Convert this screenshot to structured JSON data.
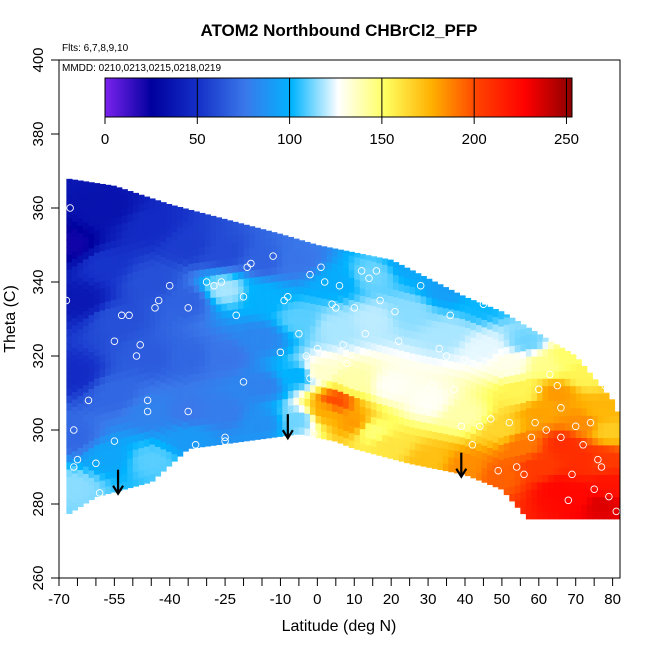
{
  "chart_data": {
    "type": "heatmap",
    "title": "ATOM2 Northbound CHBrCl2_PFP",
    "xlabel": "Latitude (deg N)",
    "ylabel": "Theta (C)",
    "xlim": [
      -70,
      82
    ],
    "ylim": [
      260,
      400
    ],
    "xticks_labeled": [
      -70,
      -55,
      -40,
      -25,
      -10,
      0,
      10,
      20,
      30,
      40,
      50,
      60,
      70,
      80
    ],
    "xticks_minor_step": 5,
    "yticks": [
      260,
      280,
      300,
      320,
      340,
      360,
      380,
      400
    ],
    "notes": {
      "flights": "Flts: 6,7,8,9,10",
      "dates": "MMDD: 0210,0213,0215,0218,0219"
    },
    "colorbar": {
      "min": 0,
      "max": 253,
      "ticks": [
        0,
        50,
        100,
        150,
        200,
        250
      ],
      "colors": [
        "#7b22ee",
        "#00009e",
        "#1530c8",
        "#3a78ea",
        "#00b4ff",
        "#ffffff",
        "#ffff60",
        "#ffb000",
        "#ff4000",
        "#ff0000",
        "#8b0000"
      ]
    },
    "grid": false,
    "profile_markers_lat": [
      -54,
      -8,
      39
    ],
    "domain_top": [
      [
        -68,
        368
      ],
      [
        -55,
        366
      ],
      [
        -40,
        361
      ],
      [
        -25,
        357
      ],
      [
        -10,
        353
      ],
      [
        0,
        350
      ],
      [
        10,
        348
      ],
      [
        20,
        346
      ],
      [
        30,
        341
      ],
      [
        40,
        336
      ],
      [
        50,
        332
      ],
      [
        60,
        326
      ],
      [
        70,
        320
      ],
      [
        75,
        314
      ],
      [
        80,
        308
      ],
      [
        81,
        305
      ]
    ],
    "domain_bottom": [
      [
        -68,
        277
      ],
      [
        -60,
        282
      ],
      [
        -45,
        286
      ],
      [
        -35,
        295
      ],
      [
        -20,
        297
      ],
      [
        -5,
        299
      ],
      [
        5,
        297
      ],
      [
        10,
        295
      ],
      [
        25,
        291
      ],
      [
        40,
        288
      ],
      [
        50,
        284
      ],
      [
        57,
        276
      ],
      [
        81,
        276
      ]
    ],
    "anchors": [
      [
        -66,
        350,
        22
      ],
      [
        -64,
        335,
        38
      ],
      [
        -66,
        315,
        48
      ],
      [
        -66,
        298,
        70
      ],
      [
        -66,
        285,
        115
      ],
      [
        -57,
        360,
        35
      ],
      [
        -58,
        345,
        52
      ],
      [
        -55,
        330,
        62
      ],
      [
        -55,
        310,
        70
      ],
      [
        -57,
        293,
        95
      ],
      [
        -45,
        355,
        48
      ],
      [
        -45,
        340,
        62
      ],
      [
        -45,
        320,
        66
      ],
      [
        -45,
        305,
        80
      ],
      [
        -45,
        292,
        110
      ],
      [
        -35,
        350,
        55
      ],
      [
        -35,
        335,
        68
      ],
      [
        -35,
        320,
        70
      ],
      [
        -35,
        305,
        76
      ],
      [
        -35,
        298,
        90
      ],
      [
        -25,
        348,
        60
      ],
      [
        -25,
        338,
        118
      ],
      [
        -25,
        320,
        75
      ],
      [
        -25,
        305,
        78
      ],
      [
        -15,
        346,
        68
      ],
      [
        -15,
        336,
        100
      ],
      [
        -15,
        325,
        82
      ],
      [
        -15,
        312,
        80
      ],
      [
        -15,
        302,
        86
      ],
      [
        -5,
        346,
        75
      ],
      [
        -5,
        330,
        110
      ],
      [
        -5,
        315,
        100
      ],
      [
        -5,
        303,
        112
      ],
      [
        2,
        305,
        178
      ],
      [
        5,
        308,
        200
      ],
      [
        0,
        316,
        135
      ],
      [
        5,
        328,
        118
      ],
      [
        5,
        340,
        98
      ],
      [
        10,
        302,
        182
      ],
      [
        10,
        313,
        140
      ],
      [
        15,
        330,
        120
      ],
      [
        15,
        342,
        112
      ],
      [
        15,
        300,
        148
      ],
      [
        20,
        296,
        160
      ],
      [
        20,
        312,
        128
      ],
      [
        25,
        332,
        115
      ],
      [
        25,
        345,
        95
      ],
      [
        30,
        292,
        172
      ],
      [
        30,
        308,
        128
      ],
      [
        35,
        326,
        118
      ],
      [
        35,
        338,
        92
      ],
      [
        40,
        290,
        185
      ],
      [
        40,
        304,
        140
      ],
      [
        45,
        322,
        124
      ],
      [
        45,
        334,
        102
      ],
      [
        50,
        288,
        195
      ],
      [
        50,
        300,
        165
      ],
      [
        52,
        318,
        130
      ],
      [
        55,
        296,
        190
      ],
      [
        55,
        310,
        155
      ],
      [
        57,
        324,
        112
      ],
      [
        60,
        290,
        205
      ],
      [
        60,
        305,
        180
      ],
      [
        62,
        318,
        145
      ],
      [
        65,
        284,
        225
      ],
      [
        67,
        296,
        210
      ],
      [
        65,
        310,
        182
      ],
      [
        67,
        320,
        150
      ],
      [
        70,
        282,
        225
      ],
      [
        72,
        292,
        210
      ],
      [
        72,
        302,
        185
      ],
      [
        72,
        315,
        155
      ],
      [
        77,
        280,
        235
      ],
      [
        77,
        292,
        205
      ],
      [
        77,
        305,
        175
      ],
      [
        79,
        300,
        168
      ],
      [
        79,
        285,
        220
      ]
    ],
    "points": [
      [
        -68,
        335
      ],
      [
        -67,
        360
      ],
      [
        -66,
        300
      ],
      [
        -66,
        290
      ],
      [
        -65,
        292
      ],
      [
        -62,
        308
      ],
      [
        -60,
        291
      ],
      [
        -59,
        283
      ],
      [
        -55,
        324
      ],
      [
        -53,
        331
      ],
      [
        -51,
        331
      ],
      [
        -49,
        320
      ],
      [
        -48,
        323
      ],
      [
        -44,
        333
      ],
      [
        -43,
        335
      ],
      [
        -46,
        308
      ],
      [
        -46,
        305
      ],
      [
        -55,
        297
      ],
      [
        -40,
        339
      ],
      [
        -35,
        333
      ],
      [
        -35,
        305
      ],
      [
        -33,
        296
      ],
      [
        -30,
        340
      ],
      [
        -28,
        339
      ],
      [
        -26,
        340
      ],
      [
        -22,
        331
      ],
      [
        -20,
        336
      ],
      [
        -19,
        344
      ],
      [
        -18,
        345
      ],
      [
        -25,
        298
      ],
      [
        -25,
        297
      ],
      [
        -20,
        313
      ],
      [
        -12,
        347
      ],
      [
        -9,
        335
      ],
      [
        -8,
        336
      ],
      [
        -10,
        321
      ],
      [
        -5,
        326
      ],
      [
        -3,
        320
      ],
      [
        -2,
        342
      ],
      [
        -2,
        314
      ],
      [
        -1,
        299
      ],
      [
        0,
        322
      ],
      [
        1,
        344
      ],
      [
        2,
        340
      ],
      [
        4,
        334
      ],
      [
        5,
        333
      ],
      [
        6,
        339
      ],
      [
        7,
        323
      ],
      [
        8,
        318
      ],
      [
        10,
        333
      ],
      [
        12,
        343
      ],
      [
        13,
        326
      ],
      [
        14,
        341
      ],
      [
        16,
        343
      ],
      [
        17,
        335
      ],
      [
        21,
        332
      ],
      [
        22,
        324
      ],
      [
        24,
        346
      ],
      [
        28,
        339
      ],
      [
        31,
        312
      ],
      [
        30,
        306
      ],
      [
        33,
        322
      ],
      [
        35,
        320
      ],
      [
        36,
        331
      ],
      [
        37,
        311
      ],
      [
        39,
        301
      ],
      [
        40,
        319
      ],
      [
        42,
        296
      ],
      [
        44,
        301
      ],
      [
        45,
        334
      ],
      [
        47,
        303
      ],
      [
        49,
        289
      ],
      [
        52,
        302
      ],
      [
        54,
        290
      ],
      [
        56,
        288
      ],
      [
        58,
        298
      ],
      [
        59,
        302
      ],
      [
        60,
        311
      ],
      [
        62,
        300
      ],
      [
        63,
        315
      ],
      [
        65,
        312
      ],
      [
        66,
        306
      ],
      [
        66,
        298
      ],
      [
        68,
        281
      ],
      [
        69,
        288
      ],
      [
        70,
        301
      ],
      [
        72,
        296
      ],
      [
        73,
        323
      ],
      [
        74,
        302
      ],
      [
        75,
        284
      ],
      [
        76,
        292
      ],
      [
        77,
        290
      ],
      [
        78,
        312
      ],
      [
        79,
        282
      ],
      [
        80,
        323
      ],
      [
        81,
        278
      ]
    ]
  }
}
